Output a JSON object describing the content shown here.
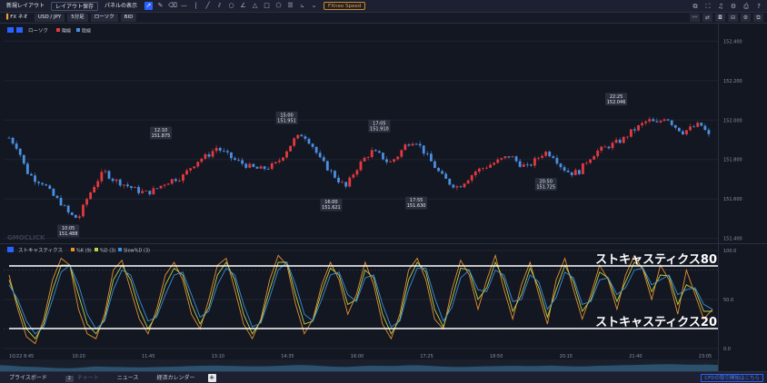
{
  "toolbar": {
    "new_layout": "新規レイアウト",
    "save_layout": "レイアウト保存",
    "panel_display": "パネルの表示",
    "speed_button": "FXneo Speed",
    "tools": [
      "cursor-icon",
      "pencil-icon",
      "eraser-icon",
      "horizontal-line-icon",
      "vertical-line-icon",
      "trend-line-icon",
      "parallel-lines-icon",
      "circle-icon",
      "angle-icon",
      "triangle-icon",
      "rectangle-icon",
      "pentagon-icon",
      "fibonacci-icon",
      "chart-type-icon",
      "dropdown-icon"
    ]
  },
  "symbol_bar": {
    "product": "FX ネオ",
    "pair": "USD / JPY",
    "timeframe": "5分足",
    "chart_type": "ローソク",
    "price_type": "BID"
  },
  "chart_legend": {
    "main_label": "ローソク",
    "up_label": "陽線",
    "down_label": "陰線"
  },
  "watermark": "GMOCLICK",
  "osc_legend": {
    "title": "ストキャスティクス",
    "k": "%K (9)",
    "d": "%D (3)",
    "slowd": "Slow%D (3)"
  },
  "annotations": {
    "line80": "ストキャスティクス80",
    "line20": "ストキャスティクス20"
  },
  "bottom_bar": {
    "tabs": [
      "プライスボード",
      "チャート",
      "ニュース",
      "経済カレンダー"
    ],
    "chart_badge": "2",
    "cfd_link": "CFDの取引開始はこちら"
  },
  "colors": {
    "background": "#131722",
    "up": "#e5393e",
    "down": "#4a90e2",
    "k_line": "#e8902c",
    "d_line": "#b8d24a",
    "slowd_line": "#3a8fdc"
  },
  "chart_data": [
    {
      "type": "candlestick",
      "title": "USD/JPY 5分足",
      "y_ticks": [
        "152.400",
        "152.200",
        "152.000",
        "151.800",
        "151.600",
        "151.400"
      ],
      "ylim": [
        151.38,
        152.48
      ],
      "x_ticks": [
        "10/22 8:45",
        "10:20",
        "11:45",
        "13:10",
        "14:35",
        "16:00",
        "17:25",
        "18:50",
        "20:15",
        "21:40",
        "23:05"
      ],
      "price_labels": [
        {
          "time": "10:05",
          "price": "151.488"
        },
        {
          "time": "12:10",
          "price": "151.875"
        },
        {
          "time": "15:00",
          "price": "151.951"
        },
        {
          "time": "16:00",
          "price": "151.621"
        },
        {
          "time": "17:05",
          "price": "151.910"
        },
        {
          "time": "17:55",
          "price": "151.630"
        },
        {
          "time": "20:50",
          "price": "151.725"
        },
        {
          "time": "22:25",
          "price": "152.046"
        }
      ],
      "close_path": [
        151.91,
        151.86,
        151.74,
        151.7,
        151.68,
        151.62,
        151.58,
        151.52,
        151.5,
        151.6,
        151.68,
        151.74,
        151.7,
        151.68,
        151.66,
        151.64,
        151.63,
        151.65,
        151.68,
        151.7,
        151.71,
        151.76,
        151.8,
        151.82,
        151.86,
        151.83,
        151.8,
        151.78,
        151.76,
        151.75,
        151.76,
        151.78,
        151.84,
        151.9,
        151.93,
        151.88,
        151.8,
        151.75,
        151.7,
        151.66,
        151.74,
        151.8,
        151.84,
        151.82,
        151.78,
        151.82,
        151.88,
        151.9,
        151.84,
        151.78,
        151.72,
        151.68,
        151.66,
        151.7,
        151.74,
        151.76,
        151.78,
        151.8,
        151.82,
        151.78,
        151.76,
        151.8,
        151.84,
        151.82,
        151.76,
        151.73,
        151.74,
        151.8,
        151.84,
        151.86,
        151.88,
        151.9,
        151.94,
        151.97,
        152.0,
        151.98,
        152.02,
        151.97,
        151.94,
        151.96,
        151.98,
        151.92
      ]
    },
    {
      "type": "line",
      "title": "ストキャスティクス",
      "y_ticks": [
        "100.0",
        "50.0",
        "0.0"
      ],
      "ylim": [
        0,
        100
      ],
      "levels": [
        80,
        20
      ],
      "series": [
        {
          "name": "%K (9)",
          "values": [
            75,
            40,
            12,
            5,
            30,
            70,
            92,
            85,
            40,
            15,
            10,
            35,
            80,
            90,
            60,
            30,
            15,
            40,
            75,
            88,
            70,
            35,
            20,
            50,
            85,
            92,
            60,
            25,
            10,
            30,
            70,
            95,
            85,
            45,
            15,
            30,
            65,
            88,
            70,
            35,
            55,
            88,
            65,
            25,
            10,
            35,
            80,
            92,
            70,
            30,
            20,
            60,
            90,
            75,
            40,
            70,
            95,
            60,
            30,
            65,
            88,
            55,
            25,
            70,
            92,
            60,
            30,
            55,
            85,
            70,
            40,
            75,
            95,
            80,
            50,
            85,
            70,
            35,
            80,
            55,
            30,
            40
          ]
        },
        {
          "name": "%D (3)",
          "values": [
            70,
            45,
            20,
            10,
            25,
            60,
            85,
            85,
            55,
            25,
            15,
            30,
            70,
            85,
            70,
            40,
            20,
            35,
            65,
            82,
            75,
            45,
            25,
            42,
            75,
            88,
            70,
            35,
            15,
            28,
            60,
            88,
            88,
            55,
            25,
            28,
            58,
            82,
            75,
            45,
            50,
            80,
            72,
            35,
            15,
            30,
            70,
            88,
            78,
            40,
            22,
            50,
            82,
            80,
            50,
            62,
            88,
            70,
            38,
            55,
            82,
            62,
            32,
            60,
            85,
            68,
            38,
            50,
            78,
            72,
            48,
            68,
            88,
            82,
            58,
            75,
            74,
            45,
            65,
            60,
            38,
            38
          ]
        },
        {
          "name": "Slow%D (3)",
          "values": [
            65,
            50,
            28,
            15,
            22,
            50,
            78,
            85,
            65,
            35,
            20,
            28,
            60,
            80,
            75,
            50,
            28,
            32,
            55,
            75,
            78,
            55,
            32,
            38,
            65,
            82,
            75,
            45,
            22,
            26,
            52,
            80,
            88,
            65,
            35,
            28,
            50,
            75,
            78,
            55,
            48,
            72,
            75,
            45,
            22,
            28,
            60,
            82,
            82,
            52,
            28,
            42,
            72,
            80,
            60,
            58,
            80,
            75,
            48,
            50,
            75,
            68,
            40,
            52,
            78,
            72,
            45,
            48,
            70,
            72,
            55,
            62,
            80,
            82,
            65,
            70,
            75,
            55,
            60,
            62,
            45,
            40
          ]
        }
      ]
    }
  ]
}
